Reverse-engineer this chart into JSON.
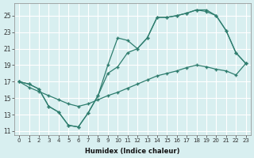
{
  "xlabel": "Humidex (Indice chaleur)",
  "xlim": [
    -0.5,
    23.5
  ],
  "ylim": [
    10.5,
    26.5
  ],
  "xticks": [
    0,
    1,
    2,
    3,
    4,
    5,
    6,
    7,
    8,
    9,
    10,
    11,
    12,
    13,
    14,
    15,
    16,
    17,
    18,
    19,
    20,
    21,
    22,
    23
  ],
  "yticks": [
    11,
    13,
    15,
    17,
    19,
    21,
    23,
    25
  ],
  "color": "#2e7d6e",
  "bg_color": "#d8eff0",
  "line1_x": [
    0,
    1,
    2,
    3,
    4,
    5,
    6,
    7,
    8,
    9,
    10,
    11,
    12,
    13,
    14,
    15,
    16,
    17,
    18,
    19,
    20,
    21,
    22,
    23
  ],
  "line1_y": [
    17,
    16.7,
    16.1,
    14.0,
    13.3,
    11.7,
    11.5,
    13.2,
    15.3,
    19.0,
    22.3,
    22.0,
    21.0,
    22.3,
    24.8,
    24.8,
    25.0,
    25.3,
    25.7,
    25.5,
    25.0,
    23.2,
    20.5,
    19.2
  ],
  "line2_x": [
    0,
    1,
    2,
    3,
    4,
    5,
    6,
    7,
    8,
    9,
    10,
    11,
    12,
    13,
    14,
    15,
    16,
    17,
    18,
    19,
    20,
    21,
    22,
    23
  ],
  "line2_y": [
    17,
    16.7,
    16.1,
    14.0,
    13.3,
    11.7,
    11.5,
    13.2,
    15.3,
    18.0,
    18.8,
    20.5,
    21.0,
    22.3,
    24.8,
    24.8,
    25.0,
    25.3,
    25.7,
    25.7,
    25.0,
    23.2,
    20.5,
    19.2
  ],
  "line3_x": [
    0,
    1,
    2,
    3,
    4,
    5,
    6,
    7,
    8,
    9,
    10,
    11,
    12,
    13,
    14,
    15,
    16,
    17,
    18,
    19,
    20,
    21,
    22,
    23
  ],
  "line3_y": [
    17.0,
    16.3,
    15.8,
    15.3,
    14.8,
    14.3,
    14.0,
    14.3,
    14.8,
    15.3,
    15.7,
    16.2,
    16.7,
    17.2,
    17.7,
    18.0,
    18.3,
    18.7,
    19.0,
    18.8,
    18.5,
    18.3,
    17.8,
    19.2
  ]
}
